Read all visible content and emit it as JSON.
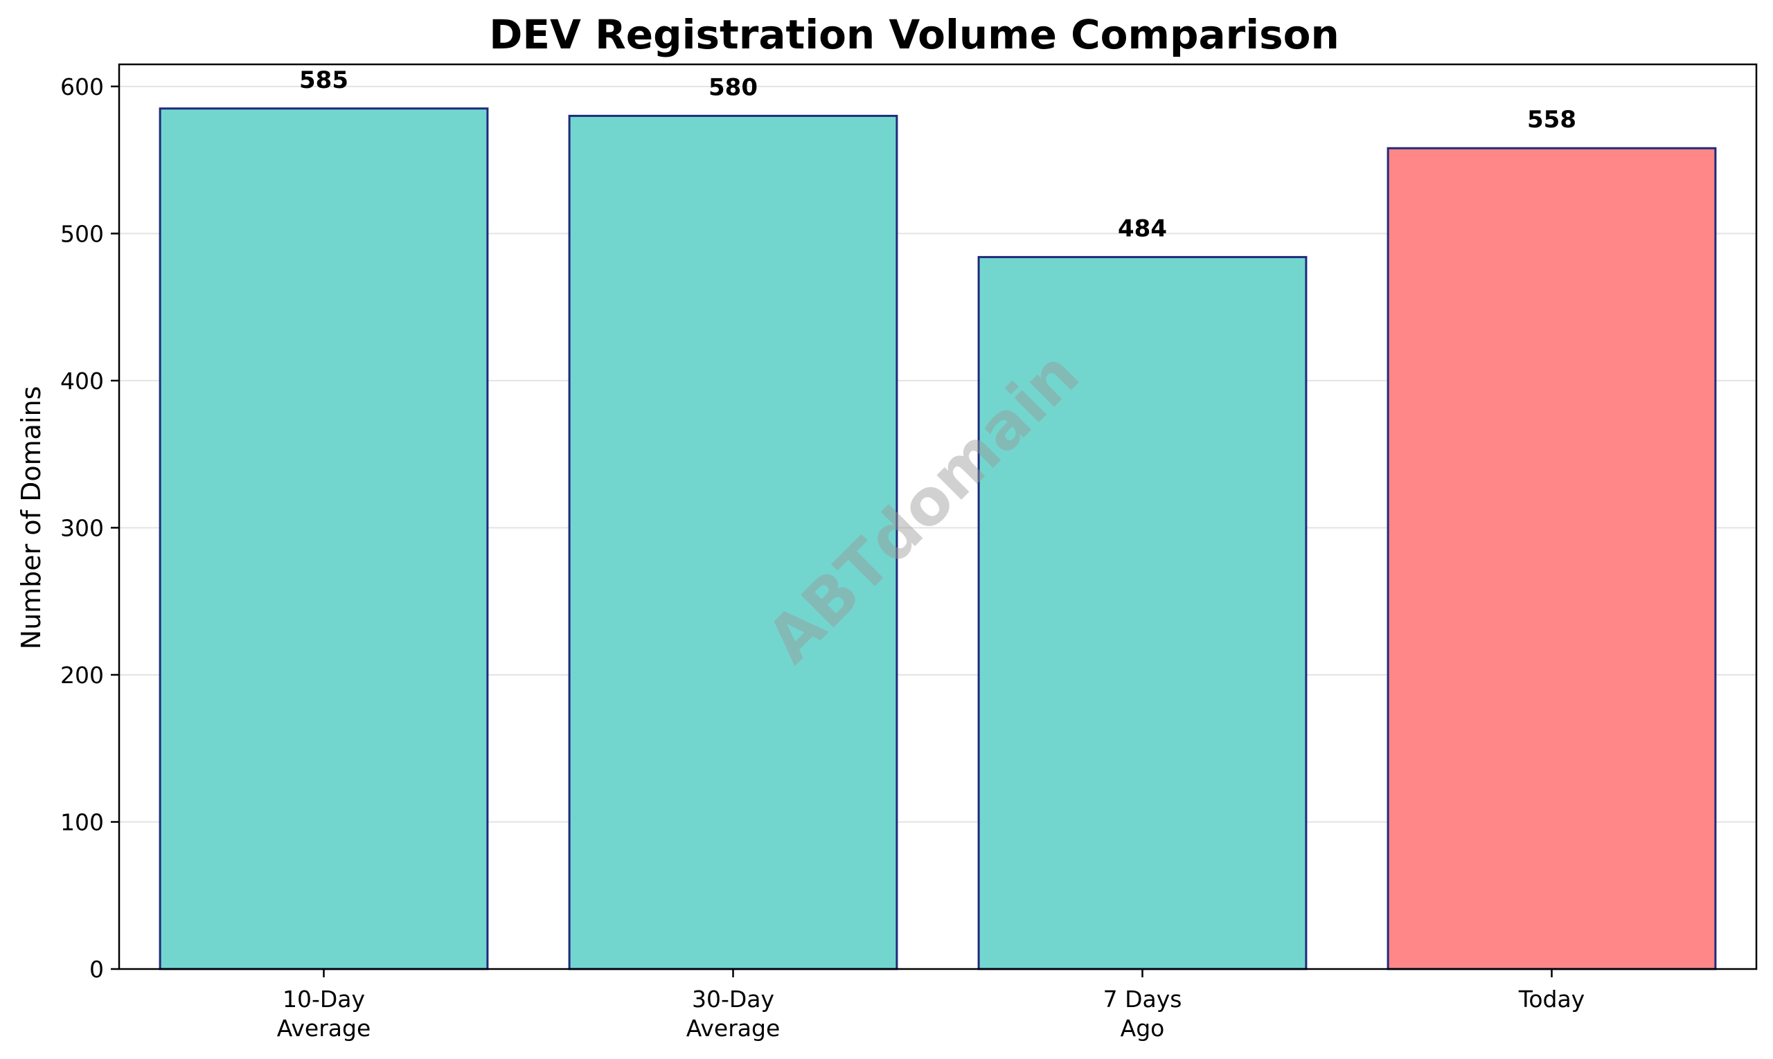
{
  "chart_data": {
    "type": "bar",
    "title": "DEV Registration Volume Comparison",
    "xlabel": "",
    "ylabel": "Number of Domains",
    "categories": [
      [
        "10-Day",
        "Average"
      ],
      [
        "30-Day",
        "Average"
      ],
      [
        "7 Days",
        "Ago"
      ],
      [
        "Today"
      ]
    ],
    "values": [
      585,
      580,
      484,
      558
    ],
    "value_labels": [
      "585",
      "580",
      "484",
      "558"
    ],
    "bar_colors": [
      "#72d6cf",
      "#72d6cf",
      "#72d6cf",
      "#ff8787"
    ],
    "edge_color": "#1f2a7a",
    "ylim": [
      0,
      615
    ],
    "yticks": [
      0,
      100,
      200,
      300,
      400,
      500,
      600
    ],
    "grid": "y",
    "watermark": "ABTdomain"
  }
}
